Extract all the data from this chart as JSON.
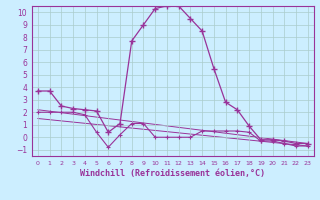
{
  "xlabel": "Windchill (Refroidissement éolien,°C)",
  "xlim": [
    -0.5,
    23.5
  ],
  "ylim": [
    -1.5,
    10.5
  ],
  "background_color": "#cceeff",
  "grid_color": "#aacccc",
  "line_color": "#993399",
  "xticks": [
    0,
    1,
    2,
    3,
    4,
    5,
    6,
    7,
    8,
    9,
    10,
    11,
    12,
    13,
    14,
    15,
    16,
    17,
    18,
    19,
    20,
    21,
    22,
    23
  ],
  "yticks": [
    -1,
    0,
    1,
    2,
    3,
    4,
    5,
    6,
    7,
    8,
    9,
    10
  ],
  "line1_x": [
    0,
    1,
    2,
    3,
    4,
    5,
    6,
    7,
    8,
    9,
    10,
    11,
    12,
    13,
    14,
    15,
    16,
    17,
    18,
    19,
    20,
    21,
    22,
    23
  ],
  "line1_y": [
    3.7,
    3.7,
    2.5,
    2.3,
    2.2,
    2.1,
    0.4,
    1.1,
    7.7,
    9.0,
    10.3,
    10.5,
    10.5,
    9.5,
    8.5,
    5.5,
    2.8,
    2.2,
    0.9,
    -0.2,
    -0.2,
    -0.3,
    -0.5,
    -0.5
  ],
  "line2_x": [
    0,
    1,
    2,
    3,
    4,
    5,
    6,
    7,
    8,
    9,
    10,
    11,
    12,
    13,
    14,
    15,
    16,
    17,
    18,
    19,
    20,
    21,
    22,
    23
  ],
  "line2_y": [
    2.0,
    2.0,
    2.0,
    2.0,
    1.8,
    0.4,
    -0.8,
    0.2,
    1.1,
    1.1,
    0.0,
    0.0,
    0.0,
    0.0,
    0.5,
    0.5,
    0.5,
    0.5,
    0.4,
    -0.3,
    -0.3,
    -0.5,
    -0.7,
    -0.7
  ],
  "line3_x": [
    0,
    23
  ],
  "line3_y": [
    2.2,
    -0.5
  ],
  "line4_x": [
    0,
    23
  ],
  "line4_y": [
    1.5,
    -0.7
  ],
  "xlabel_fontsize": 6,
  "tick_fontsize": 5.5
}
